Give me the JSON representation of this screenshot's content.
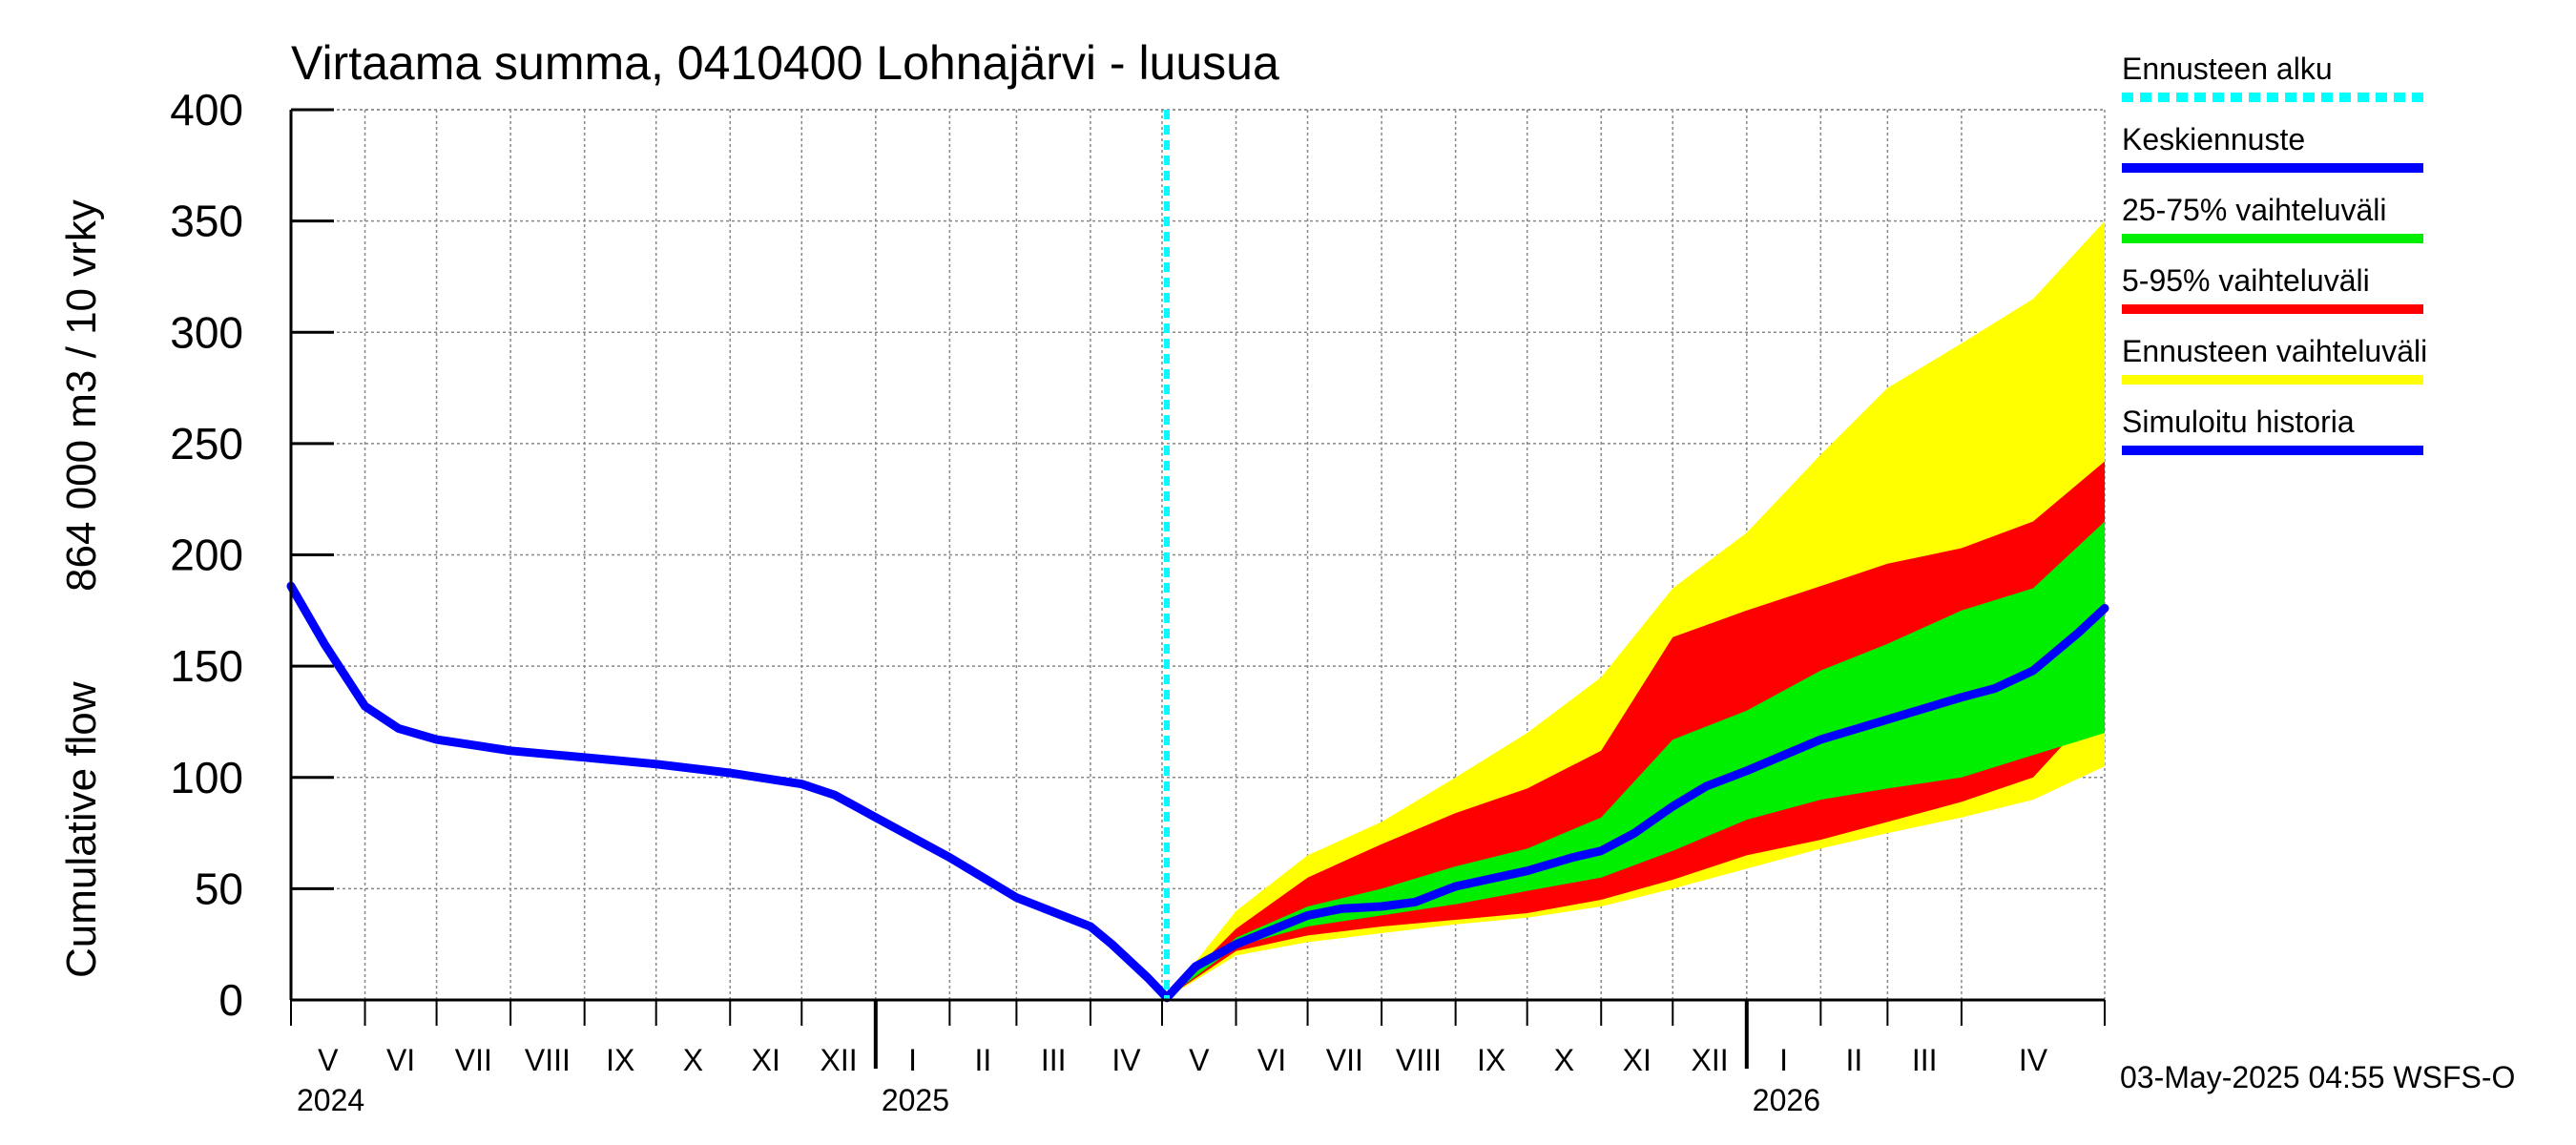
{
  "chart_data": {
    "type": "area",
    "title": "Virtaama summa, 0410400 Lohnajärvi - luusua",
    "ylabel_lines": [
      "Cumulative flow",
      "864 000 m3 / 10 vrky"
    ],
    "ylim": [
      0,
      400
    ],
    "yticks": [
      0,
      50,
      100,
      150,
      200,
      250,
      300,
      350,
      400
    ],
    "xlim": [
      "2024-05-01",
      "2026-05-31"
    ],
    "grid": true,
    "months": [
      "V",
      "VI",
      "VII",
      "VIII",
      "IX",
      "X",
      "XI",
      "XII",
      "I",
      "II",
      "III",
      "IV",
      "V",
      "VI",
      "VII",
      "VIII",
      "IX",
      "X",
      "XI",
      "XII",
      "I",
      "II",
      "III",
      "IV"
    ],
    "years": [
      "2024",
      "2025",
      "2026"
    ],
    "forecast_start": "2025-05-03",
    "timestamp": "03-May-2025 04:55 WSFS-O",
    "legend_position": "right",
    "legend": [
      {
        "label": "Ennusteen alku",
        "color": "#00ffff",
        "style": "dashed"
      },
      {
        "label": "Keskiennuste",
        "color": "#0000ff",
        "style": "solid"
      },
      {
        "label": "25-75% vaihteluväli",
        "color": "#00ee00",
        "style": "solid"
      },
      {
        "label": "5-95% vaihteluväli",
        "color": "#ff0000",
        "style": "solid"
      },
      {
        "label": "Ennusteen vaihteluväli",
        "color": "#ffff00",
        "style": "solid"
      },
      {
        "label": "Simuloitu historia",
        "color": "#0000ff",
        "style": "solid"
      }
    ],
    "series": [
      {
        "name": "Simuloitu historia",
        "x": [
          "2024-05-01",
          "2024-05-15",
          "2024-06-01",
          "2024-06-15",
          "2024-07-01",
          "2024-08-01",
          "2024-09-01",
          "2024-10-01",
          "2024-11-01",
          "2024-12-01",
          "2024-12-15",
          "2025-01-01",
          "2025-02-01",
          "2025-03-01",
          "2025-04-01",
          "2025-04-10",
          "2025-04-25",
          "2025-05-03"
        ],
        "values": [
          186,
          160,
          132,
          122,
          117,
          112,
          109,
          106,
          102,
          97,
          92,
          82,
          64,
          46,
          33,
          25,
          10,
          1
        ]
      },
      {
        "name": "Keskiennuste",
        "x": [
          "2025-05-03",
          "2025-05-15",
          "2025-06-01",
          "2025-07-01",
          "2025-07-15",
          "2025-08-01",
          "2025-08-15",
          "2025-09-01",
          "2025-10-01",
          "2025-10-20",
          "2025-11-01",
          "2025-11-15",
          "2025-12-01",
          "2025-12-15",
          "2026-01-01",
          "2026-02-01",
          "2026-03-01",
          "2026-04-01",
          "2026-04-15",
          "2026-05-01",
          "2026-05-20",
          "2026-05-31"
        ],
        "values": [
          1,
          15,
          25,
          38,
          41,
          42,
          44,
          51,
          58,
          64,
          67,
          75,
          87,
          96,
          103,
          117,
          126,
          136,
          140,
          148,
          165,
          176
        ]
      },
      {
        "name": "Ennusteen vaihteluväli",
        "x": [
          "2025-05-03",
          "2025-06-01",
          "2025-07-01",
          "2025-08-01",
          "2025-09-01",
          "2025-10-01",
          "2025-11-01",
          "2025-12-01",
          "2026-01-01",
          "2026-02-01",
          "2026-03-01",
          "2026-04-01",
          "2026-05-01",
          "2026-05-31"
        ],
        "lower": [
          1,
          20,
          26,
          30,
          34,
          37,
          42,
          50,
          59,
          68,
          75,
          82,
          90,
          105
        ],
        "upper": [
          1,
          40,
          65,
          80,
          100,
          120,
          145,
          185,
          210,
          245,
          275,
          295,
          315,
          350
        ]
      },
      {
        "name": "5-95% vaihteluväli",
        "x": [
          "2025-05-03",
          "2025-06-01",
          "2025-07-01",
          "2025-08-01",
          "2025-09-01",
          "2025-10-01",
          "2025-11-01",
          "2025-12-01",
          "2026-01-01",
          "2026-02-01",
          "2026-03-01",
          "2026-04-01",
          "2026-05-01",
          "2026-05-31"
        ],
        "lower": [
          1,
          22,
          29,
          33,
          36,
          39,
          45,
          54,
          65,
          72,
          80,
          89,
          100,
          135
        ],
        "upper": [
          1,
          32,
          55,
          70,
          84,
          95,
          112,
          163,
          175,
          186,
          196,
          203,
          215,
          242
        ]
      },
      {
        "name": "25-75% vaihteluväli",
        "x": [
          "2025-05-03",
          "2025-06-01",
          "2025-07-01",
          "2025-08-01",
          "2025-09-01",
          "2025-10-01",
          "2025-11-01",
          "2025-12-01",
          "2026-01-01",
          "2026-02-01",
          "2026-03-01",
          "2026-04-01",
          "2026-05-01",
          "2026-05-31"
        ],
        "lower": [
          1,
          24,
          33,
          38,
          43,
          49,
          55,
          67,
          81,
          90,
          95,
          100,
          110,
          120
        ],
        "upper": [
          1,
          28,
          42,
          50,
          60,
          68,
          82,
          117,
          130,
          148,
          160,
          175,
          185,
          215
        ]
      }
    ]
  }
}
